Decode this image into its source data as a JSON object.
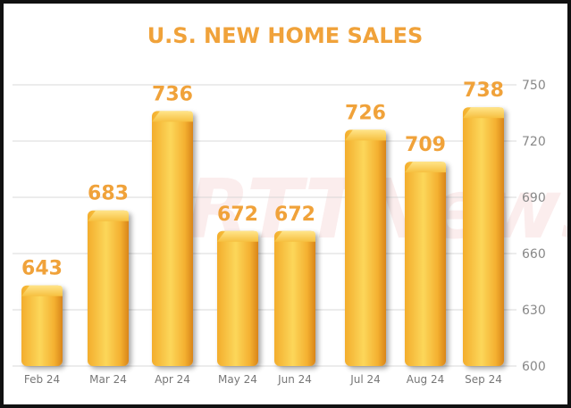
{
  "chart_data": {
    "type": "bar",
    "title": "U.S. NEW HOME SALES",
    "categories": [
      "Feb 24",
      "Mar 24",
      "Apr 24",
      "May 24",
      "Jun 24",
      "Jul 24",
      "Aug 24",
      "Sep 24"
    ],
    "values": [
      643,
      683,
      736,
      672,
      672,
      726,
      709,
      738
    ],
    "value_labels": [
      "643",
      "683",
      "736",
      "672",
      "672",
      "726",
      "709",
      "738"
    ],
    "ylim": [
      600,
      750
    ],
    "yticks": [
      600,
      630,
      660,
      690,
      720,
      750
    ],
    "ytick_labels": [
      "600",
      "630",
      "660",
      "690",
      "720",
      "750"
    ],
    "yaxis_side": "right",
    "grid": true,
    "colors": {
      "bar_light": "#fcd75a",
      "bar_mid": "#f7b733",
      "bar_dark": "#d9851a",
      "title": "#f0a23a",
      "label": "#f0a23a"
    },
    "watermark": "RTTNews"
  }
}
